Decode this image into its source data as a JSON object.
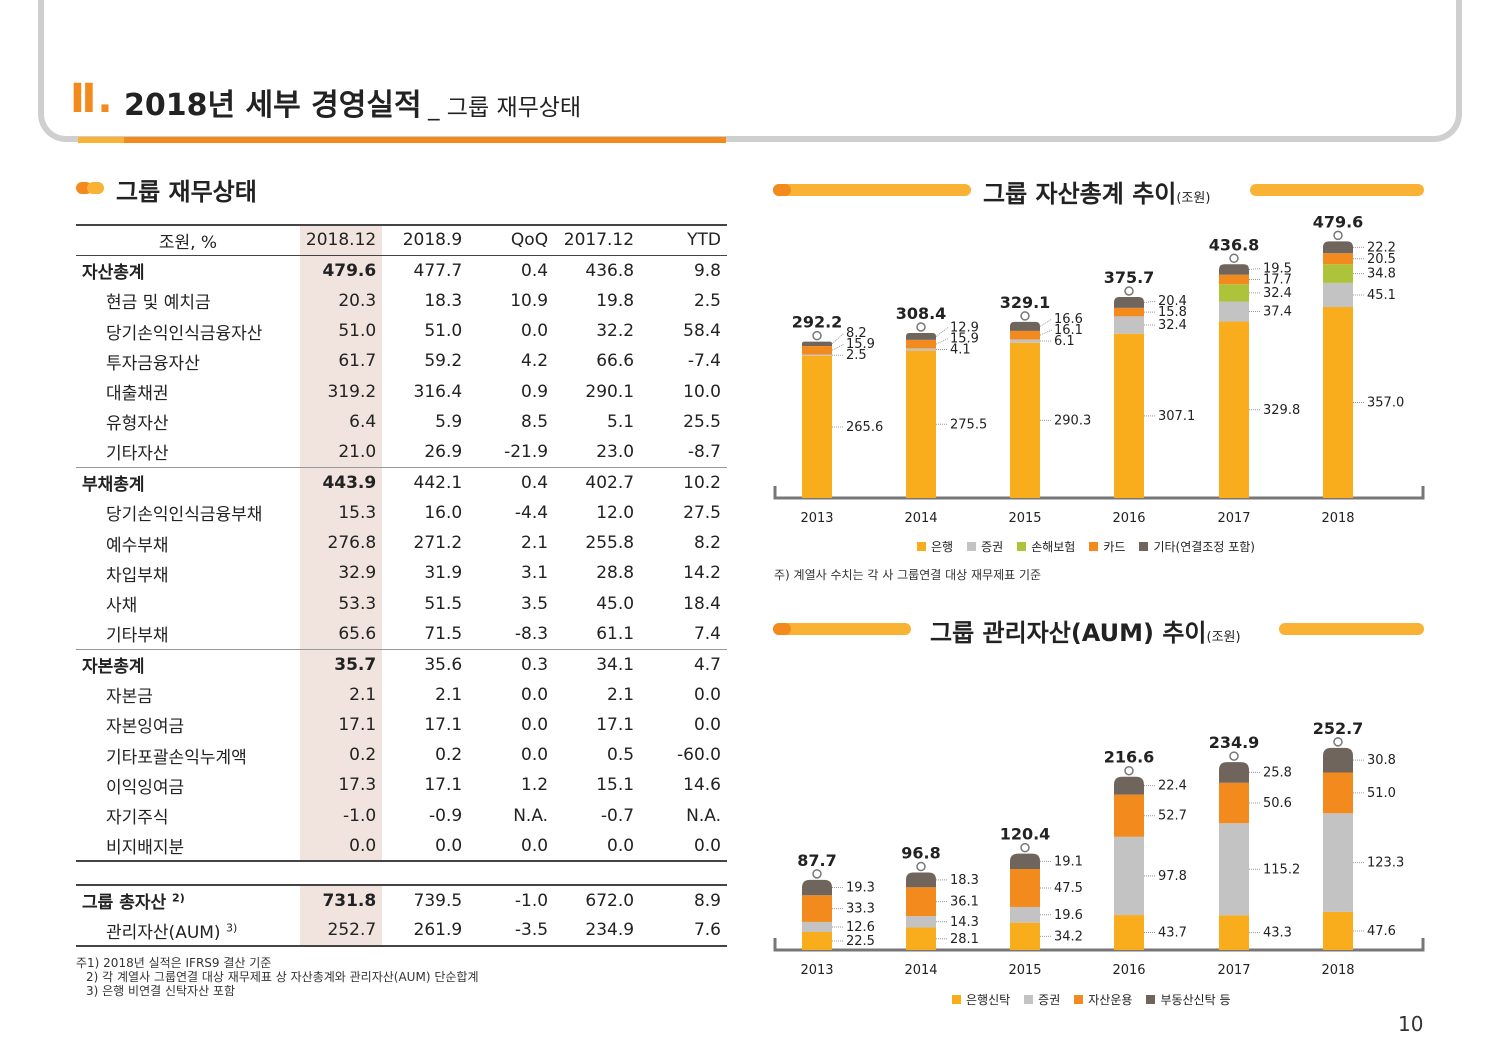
{
  "header": {
    "roman": "Ⅱ.",
    "title": "2018년 세부 경영실적",
    "subtitle": "_ 그룹 재무상태"
  },
  "section": {
    "title": "그룹 재무상태"
  },
  "table": {
    "columns": [
      "조원, %",
      "2018.12",
      "2018.9",
      "QoQ",
      "2017.12",
      "YTD"
    ],
    "rows": [
      {
        "label": "자산총계",
        "v": [
          "479.6",
          "477.7",
          "0.4",
          "436.8",
          "9.8"
        ]
      },
      {
        "label": "현금 및 예치금",
        "v": [
          "20.3",
          "18.3",
          "10.9",
          "19.8",
          "2.5"
        ]
      },
      {
        "label": "당기손익인식금융자산",
        "v": [
          "51.0",
          "51.0",
          "0.0",
          "32.2",
          "58.4"
        ]
      },
      {
        "label": "투자금융자산",
        "v": [
          "61.7",
          "59.2",
          "4.2",
          "66.6",
          "-7.4"
        ]
      },
      {
        "label": "대출채권",
        "v": [
          "319.2",
          "316.4",
          "0.9",
          "290.1",
          "10.0"
        ]
      },
      {
        "label": "유형자산",
        "v": [
          "6.4",
          "5.9",
          "8.5",
          "5.1",
          "25.5"
        ]
      },
      {
        "label": "기타자산",
        "v": [
          "21.0",
          "26.9",
          "-21.9",
          "23.0",
          "-8.7"
        ]
      },
      {
        "label": "부채총계",
        "v": [
          "443.9",
          "442.1",
          "0.4",
          "402.7",
          "10.2"
        ]
      },
      {
        "label": "당기손익인식금융부채",
        "v": [
          "15.3",
          "16.0",
          "-4.4",
          "12.0",
          "27.5"
        ]
      },
      {
        "label": "예수부채",
        "v": [
          "276.8",
          "271.2",
          "2.1",
          "255.8",
          "8.2"
        ]
      },
      {
        "label": "차입부채",
        "v": [
          "32.9",
          "31.9",
          "3.1",
          "28.8",
          "14.2"
        ]
      },
      {
        "label": "사채",
        "v": [
          "53.3",
          "51.5",
          "3.5",
          "45.0",
          "18.4"
        ]
      },
      {
        "label": "기타부채",
        "v": [
          "65.6",
          "71.5",
          "-8.3",
          "61.1",
          "7.4"
        ]
      },
      {
        "label": "자본총계",
        "v": [
          "35.7",
          "35.6",
          "0.3",
          "34.1",
          "4.7"
        ]
      },
      {
        "label": "자본금",
        "v": [
          "2.1",
          "2.1",
          "0.0",
          "2.1",
          "0.0"
        ]
      },
      {
        "label": "자본잉여금",
        "v": [
          "17.1",
          "17.1",
          "0.0",
          "17.1",
          "0.0"
        ]
      },
      {
        "label": "기타포괄손익누계액",
        "v": [
          "0.2",
          "0.2",
          "0.0",
          "0.5",
          "-60.0"
        ]
      },
      {
        "label": "이익잉여금",
        "v": [
          "17.3",
          "17.1",
          "1.2",
          "15.1",
          "14.6"
        ]
      },
      {
        "label": "자기주식",
        "v": [
          "-1.0",
          "-0.9",
          "N.A.",
          "-0.7",
          "N.A."
        ]
      },
      {
        "label": "비지배지분",
        "v": [
          "0.0",
          "0.0",
          "0.0",
          "0.0",
          "0.0"
        ]
      }
    ],
    "totals": [
      {
        "label": "그룹 총자산",
        "sup": "2)",
        "v": [
          "731.8",
          "739.5",
          "-1.0",
          "672.0",
          "8.9"
        ]
      },
      {
        "label": "관리자산(AUM)",
        "sup": "3)",
        "v": [
          "252.7",
          "261.9",
          "-3.5",
          "234.9",
          "7.6"
        ]
      }
    ]
  },
  "footnotes": [
    "주1) 2018년 실적은 IFRS9 결산 기준",
    "2) 각 계열사 그룹연결 대상 재무제표 상 자산총계와 관리자산(AUM) 단순합계",
    "3) 은행 비연결 신탁자산 포함"
  ],
  "colors": {
    "bank": "#f9ad1c",
    "securities": "#c3c3c3",
    "insurance": "#adc43a",
    "card": "#f28a1e",
    "other": "#6f655d",
    "accent": "#f28a1e"
  },
  "chart_data": [
    {
      "type": "bar",
      "title": "그룹 자산총계 추이",
      "unit": "(조원)",
      "categories": [
        "2013",
        "2014",
        "2015",
        "2016",
        "2017",
        "2018"
      ],
      "totals": [
        "292.2",
        "308.4",
        "329.1",
        "375.7",
        "436.8",
        "479.6"
      ],
      "series": [
        {
          "name": "은행",
          "values": [
            265.6,
            275.5,
            290.3,
            307.1,
            329.8,
            357.0
          ]
        },
        {
          "name": "증권",
          "values": [
            2.5,
            4.1,
            6.1,
            32.4,
            37.4,
            45.1
          ]
        },
        {
          "name": "손해보험",
          "values": [
            0,
            0,
            0,
            0,
            32.4,
            34.8
          ]
        },
        {
          "name": "카드",
          "values": [
            15.9,
            15.9,
            16.1,
            15.8,
            17.7,
            20.5
          ]
        },
        {
          "name": "기타(연결조정 포함)",
          "values": [
            8.2,
            12.9,
            16.6,
            20.4,
            19.5,
            22.2
          ]
        }
      ],
      "note": "주) 계열사 수치는 각 사 그룹연결 대상 재무제표 기준"
    },
    {
      "type": "bar",
      "title": "그룹 관리자산(AUM) 추이",
      "unit": "(조원)",
      "categories": [
        "2013",
        "2014",
        "2015",
        "2016",
        "2017",
        "2018"
      ],
      "totals": [
        "87.7",
        "96.8",
        "120.4",
        "216.6",
        "234.9",
        "252.7"
      ],
      "series": [
        {
          "name": "은행신탁",
          "values": [
            22.5,
            28.1,
            34.2,
            43.7,
            43.3,
            47.6
          ]
        },
        {
          "name": "증권",
          "values": [
            12.6,
            14.3,
            19.6,
            97.8,
            115.2,
            123.3
          ]
        },
        {
          "name": "자산운용",
          "values": [
            33.3,
            36.1,
            47.5,
            52.7,
            50.6,
            51.0
          ]
        },
        {
          "name": "부동산신탁 등",
          "values": [
            19.3,
            18.3,
            19.1,
            22.4,
            25.8,
            30.8
          ]
        }
      ]
    }
  ],
  "page_number": "10"
}
